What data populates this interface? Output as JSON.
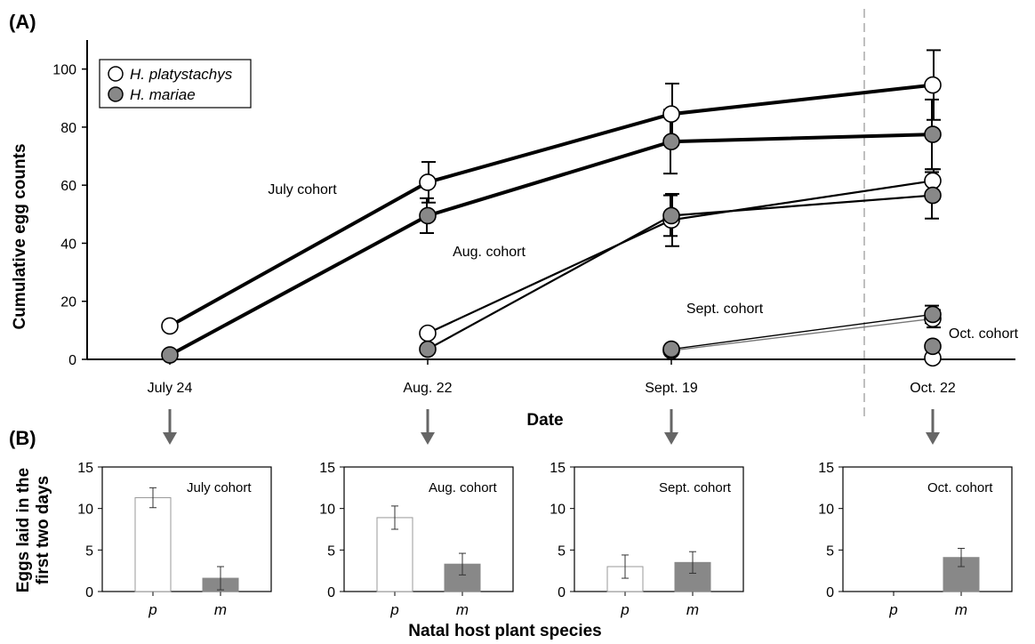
{
  "panel_a": {
    "label": "(A)",
    "ylabel": "Cumulative egg counts",
    "xlabel": "Date",
    "legend": [
      {
        "name": "H. platystachys"
      },
      {
        "name": "H. mariae"
      }
    ]
  },
  "panel_b": {
    "label": "(B)",
    "ylabel_line1": "Eggs laid in the",
    "ylabel_line2": "first two days",
    "xlabel": "Natal host plant species"
  },
  "chart_data": [
    {
      "type": "line",
      "panel": "A",
      "xlabel": "Date",
      "ylabel": "Cumulative egg counts",
      "ylim": [
        0,
        110
      ],
      "yticks": [
        0,
        20,
        40,
        60,
        80,
        100
      ],
      "categories": [
        "July 24",
        "Aug. 22",
        "Sept. 19",
        "Oct. 22"
      ],
      "reference_line_between": [
        "Sept. 19",
        "Oct. 22"
      ],
      "legend_position": "top-left",
      "cohorts": [
        {
          "name": "July cohort",
          "start": 0,
          "weight": "thick",
          "p": [
            11.5,
            61,
            84.5,
            94.5
          ],
          "p_err": [
            0,
            7,
            10.5,
            12
          ],
          "m": [
            1.5,
            49.5,
            75,
            77.5
          ],
          "m_err": [
            0,
            6,
            11,
            12
          ]
        },
        {
          "name": "Aug. cohort",
          "start": 1,
          "weight": "medium",
          "p": [
            9,
            48,
            61.5
          ],
          "p_err": [
            0,
            9,
            4
          ],
          "m": [
            3.5,
            49.5,
            56.5
          ],
          "m_err": [
            0,
            7,
            8
          ]
        },
        {
          "name": "Sept. cohort",
          "start": 2,
          "weight": "thin",
          "p": [
            3,
            14
          ],
          "p_err": [
            0,
            3
          ],
          "m": [
            3.5,
            15.5
          ],
          "m_err": [
            0,
            3
          ]
        },
        {
          "name": "Oct. cohort",
          "start": 3,
          "weight": "thin",
          "p": [
            0.5
          ],
          "p_err": [
            0
          ],
          "m": [
            4.5
          ],
          "m_err": [
            0
          ]
        }
      ]
    },
    {
      "type": "bar",
      "panel": "B",
      "xlabel": "Natal host plant species",
      "ylabel": "Eggs laid in the first two days",
      "ylim": [
        0,
        15
      ],
      "yticks": [
        0,
        5,
        10,
        15
      ],
      "categories": [
        "p",
        "m"
      ],
      "subplots": [
        {
          "title": "July cohort",
          "values": [
            11.3,
            1.6
          ],
          "errors": [
            1.2,
            1.4
          ]
        },
        {
          "title": "Aug. cohort",
          "values": [
            8.9,
            3.3
          ],
          "errors": [
            1.4,
            1.3
          ]
        },
        {
          "title": "Sept. cohort",
          "values": [
            3.0,
            3.5
          ],
          "errors": [
            1.4,
            1.3
          ]
        },
        {
          "title": "Oct. cohort",
          "values": [
            0,
            4.1
          ],
          "errors": [
            0,
            1.1
          ]
        }
      ]
    }
  ]
}
